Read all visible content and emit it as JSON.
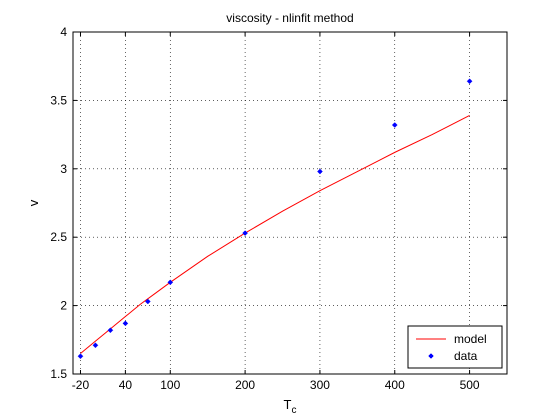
{
  "chart_data": {
    "type": "scatter",
    "title": "viscosity - nlinfit method",
    "xlabel": {
      "base": "T",
      "subscript": "c"
    },
    "ylabel": "v",
    "xlim": [
      -30,
      550
    ],
    "ylim": [
      1.5,
      4
    ],
    "xticks": [
      -20,
      40,
      100,
      200,
      300,
      400,
      500
    ],
    "xtick_labels": [
      "-20",
      "40",
      "100",
      "200",
      "300",
      "400",
      "500"
    ],
    "yticks": [
      1.5,
      2,
      2.5,
      3,
      3.5,
      4
    ],
    "ytick_labels": [
      "1.5",
      "2",
      "2.5",
      "3",
      "3.5",
      "4"
    ],
    "grid": true,
    "legend_position": "bottom-right",
    "series": [
      {
        "name": "model",
        "kind": "line",
        "color": "#ff0000",
        "x": [
          -20,
          0,
          20,
          40,
          60,
          80,
          100,
          150,
          200,
          250,
          300,
          350,
          400,
          450,
          500
        ],
        "y": [
          1.65,
          1.74,
          1.83,
          1.92,
          2.01,
          2.09,
          2.17,
          2.36,
          2.53,
          2.69,
          2.84,
          2.98,
          3.12,
          3.25,
          3.39
        ]
      },
      {
        "name": "data",
        "kind": "markers",
        "color": "#0000ff",
        "x": [
          -20,
          0,
          20,
          40,
          70,
          100,
          200,
          300,
          400,
          500
        ],
        "y": [
          1.63,
          1.71,
          1.82,
          1.87,
          2.03,
          2.17,
          2.53,
          2.98,
          3.32,
          3.64
        ]
      }
    ]
  }
}
